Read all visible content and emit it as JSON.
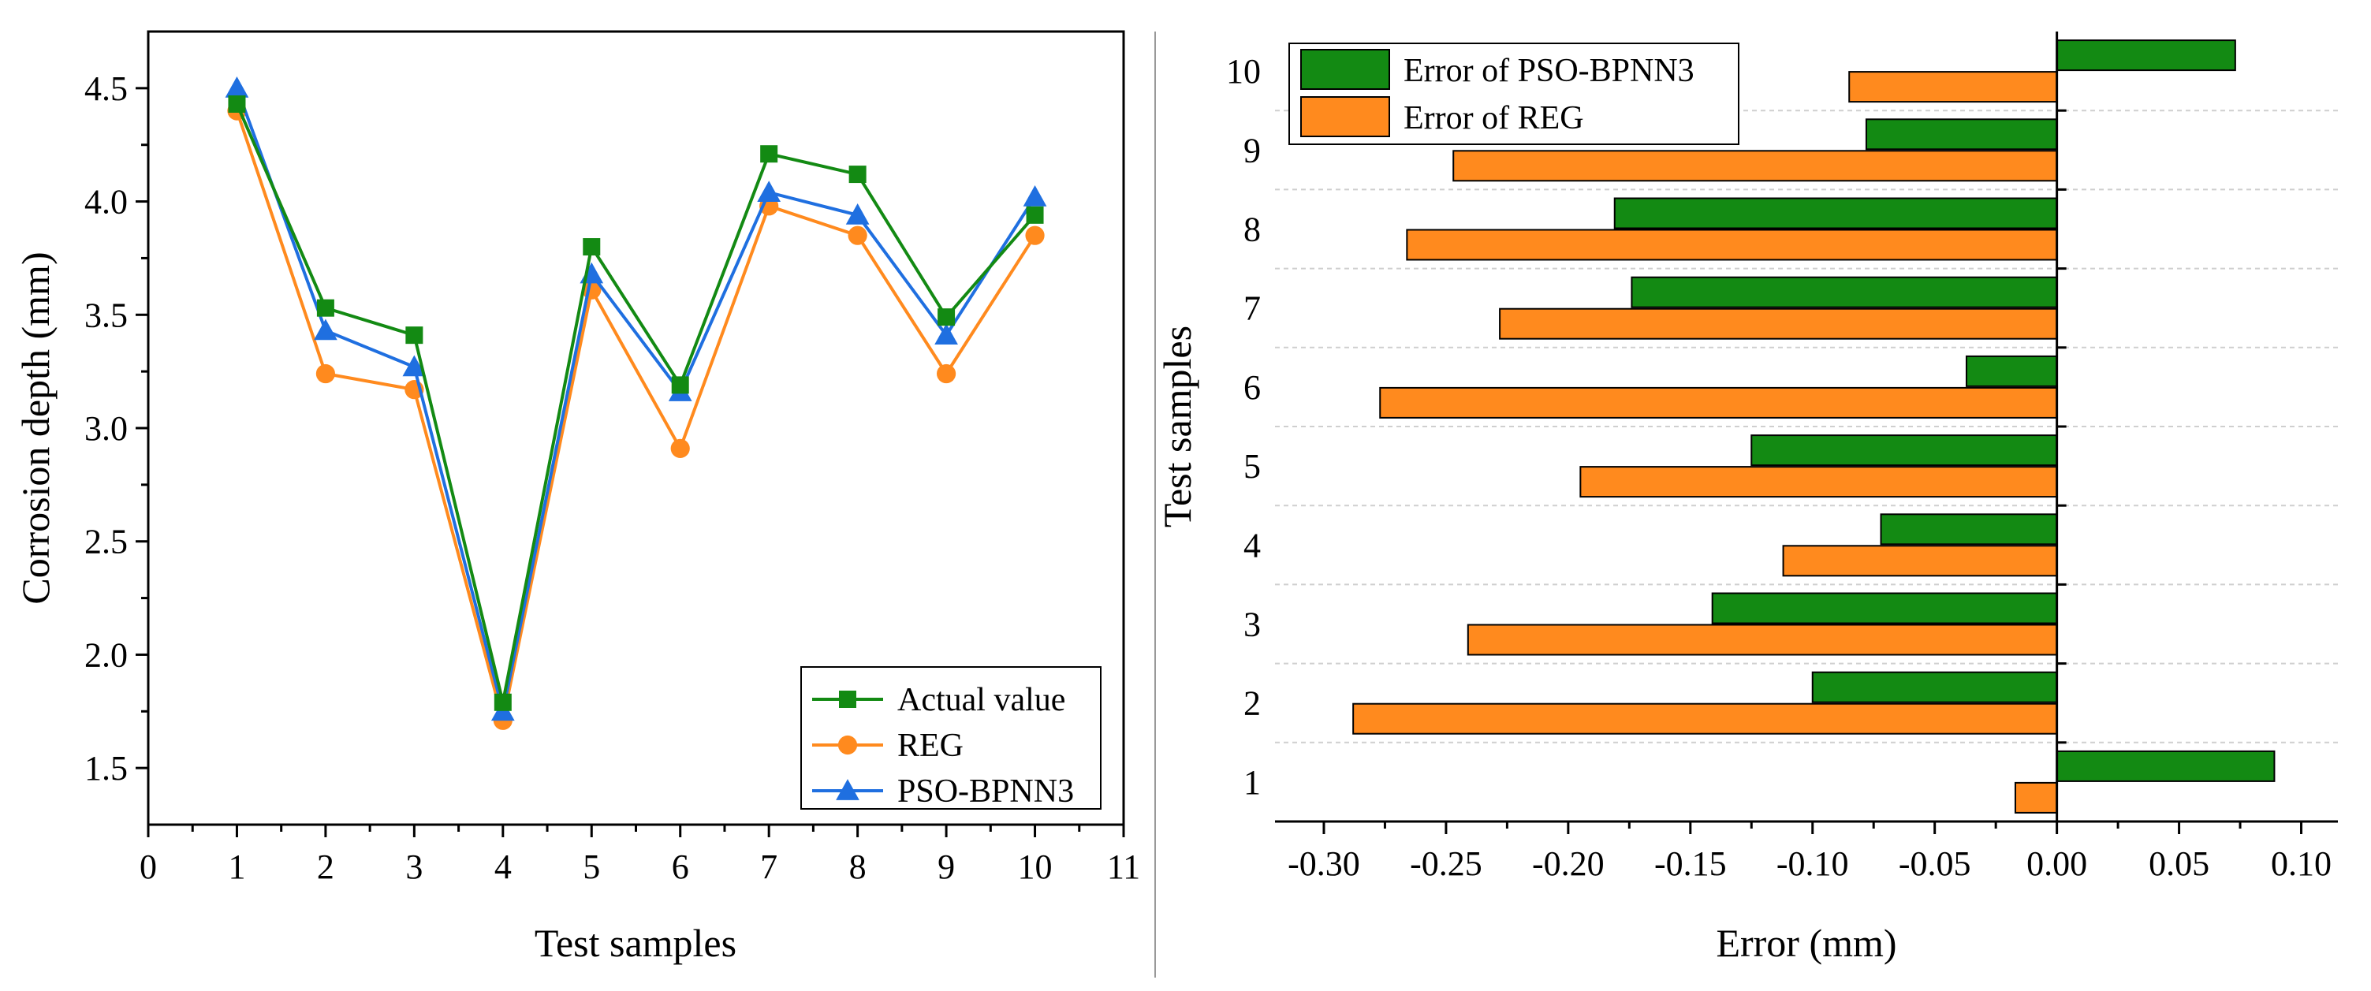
{
  "chart_data": [
    {
      "type": "line",
      "title": "",
      "xlabel": "Test samples",
      "ylabel": "Corrosion depth (mm)",
      "xlim": [
        0,
        11
      ],
      "ylim": [
        1.25,
        4.75
      ],
      "xticks": [
        0,
        1,
        2,
        3,
        4,
        5,
        6,
        7,
        8,
        9,
        10,
        11
      ],
      "xtick_labels": [
        "0",
        "1",
        "2",
        "3",
        "4",
        "5",
        "6",
        "7",
        "8",
        "9",
        "10",
        "11"
      ],
      "yticks": [
        1.5,
        2.0,
        2.5,
        3.0,
        3.5,
        4.0,
        4.5
      ],
      "ytick_labels": [
        "1.5",
        "2.0",
        "2.5",
        "3.0",
        "3.5",
        "4.0",
        "4.5"
      ],
      "grid": false,
      "legend_position": "bottom-right",
      "x": [
        1,
        2,
        3,
        4,
        5,
        6,
        7,
        8,
        9,
        10
      ],
      "series": [
        {
          "name": "Actual value",
          "color": "#138a13",
          "marker": "square",
          "values": [
            4.43,
            3.53,
            3.41,
            1.79,
            3.8,
            3.19,
            4.21,
            4.12,
            3.49,
            3.94
          ]
        },
        {
          "name": "REG",
          "color": "#ff8a1e",
          "marker": "circle",
          "values": [
            4.4,
            3.24,
            3.17,
            1.71,
            3.61,
            2.91,
            3.98,
            3.85,
            3.24,
            3.85
          ]
        },
        {
          "name": "PSO-BPNN3",
          "color": "#1f6fe0",
          "marker": "triangle",
          "values": [
            4.5,
            3.43,
            3.27,
            1.75,
            3.68,
            3.16,
            4.04,
            3.94,
            3.41,
            4.02
          ]
        }
      ]
    },
    {
      "type": "bar",
      "orientation": "horizontal",
      "title": "",
      "xlabel": "Error (mm)",
      "ylabel": "Test samples",
      "xlim": [
        -0.32,
        0.115
      ],
      "xticks": [
        -0.3,
        -0.25,
        -0.2,
        -0.15,
        -0.1,
        -0.05,
        0.0,
        0.05,
        0.1
      ],
      "xtick_labels": [
        "-0.30",
        "-0.25",
        "-0.20",
        "-0.15",
        "-0.10",
        "-0.05",
        "0.00",
        "0.05",
        "0.10"
      ],
      "categories": [
        "1",
        "2",
        "3",
        "4",
        "5",
        "6",
        "7",
        "8",
        "9",
        "10"
      ],
      "grid": true,
      "legend_position": "top-left",
      "series": [
        {
          "name": "Error of PSO-BPNN3",
          "color": "#138a13",
          "values": [
            0.089,
            -0.1,
            -0.141,
            -0.072,
            -0.125,
            -0.037,
            -0.174,
            -0.181,
            -0.078,
            0.073
          ]
        },
        {
          "name": "Error of REG",
          "color": "#ff8a1e",
          "values": [
            -0.017,
            -0.288,
            -0.241,
            -0.112,
            -0.195,
            -0.277,
            -0.228,
            -0.266,
            -0.247,
            -0.085
          ]
        }
      ]
    }
  ]
}
